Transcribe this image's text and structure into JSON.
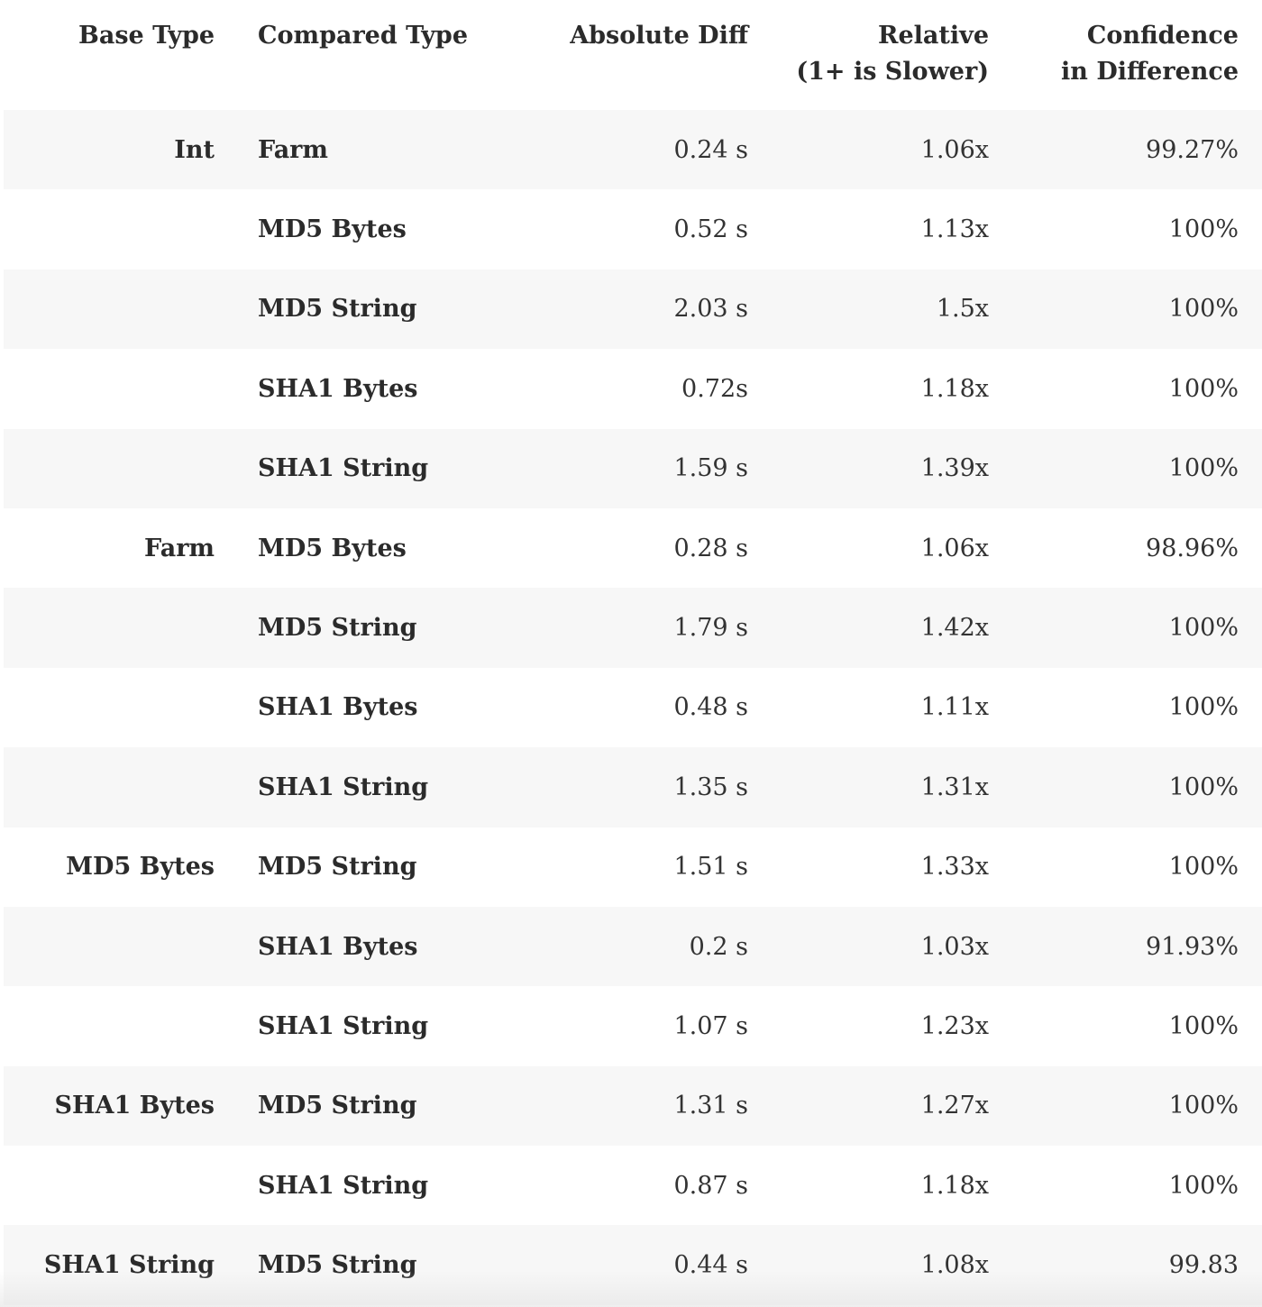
{
  "header": {
    "base_type": "Base Type",
    "compared_type": "Compared Type",
    "absolute_diff": "Absolute Diff",
    "relative_line1": "Relative",
    "relative_line2": "(1+ is Slower)",
    "confidence_line1": "Confidence",
    "confidence_line2": "in Difference"
  },
  "rows": [
    {
      "base": "Int",
      "compared": "Farm",
      "abs": "0.24 s",
      "rel": "1.06x",
      "conf": "99.27%"
    },
    {
      "base": "",
      "compared": "MD5 Bytes",
      "abs": "0.52 s",
      "rel": "1.13x",
      "conf": "100%"
    },
    {
      "base": "",
      "compared": "MD5 String",
      "abs": "2.03 s",
      "rel": "1.5x",
      "conf": "100%"
    },
    {
      "base": "",
      "compared": "SHA1 Bytes",
      "abs": "0.72s",
      "rel": "1.18x",
      "conf": "100%"
    },
    {
      "base": "",
      "compared": "SHA1 String",
      "abs": "1.59 s",
      "rel": "1.39x",
      "conf": "100%"
    },
    {
      "base": "Farm",
      "compared": "MD5 Bytes",
      "abs": "0.28 s",
      "rel": "1.06x",
      "conf": "98.96%"
    },
    {
      "base": "",
      "compared": "MD5 String",
      "abs": "1.79 s",
      "rel": "1.42x",
      "conf": "100%"
    },
    {
      "base": "",
      "compared": "SHA1 Bytes",
      "abs": "0.48 s",
      "rel": "1.11x",
      "conf": "100%"
    },
    {
      "base": "",
      "compared": "SHA1 String",
      "abs": "1.35 s",
      "rel": "1.31x",
      "conf": "100%"
    },
    {
      "base": "MD5 Bytes",
      "compared": "MD5 String",
      "abs": "1.51 s",
      "rel": "1.33x",
      "conf": "100%"
    },
    {
      "base": "",
      "compared": "SHA1 Bytes",
      "abs": "0.2 s",
      "rel": "1.03x",
      "conf": "91.93%"
    },
    {
      "base": "",
      "compared": "SHA1 String",
      "abs": "1.07 s",
      "rel": "1.23x",
      "conf": "100%"
    },
    {
      "base": "SHA1 Bytes",
      "compared": "MD5 String",
      "abs": "1.31 s",
      "rel": "1.27x",
      "conf": "100%"
    },
    {
      "base": "",
      "compared": "SHA1 String",
      "abs": "0.87 s",
      "rel": "1.18x",
      "conf": "100%"
    },
    {
      "base": "SHA1 String",
      "compared": "MD5 String",
      "abs": "0.44 s",
      "rel": "1.08x",
      "conf": "99.83"
    }
  ]
}
